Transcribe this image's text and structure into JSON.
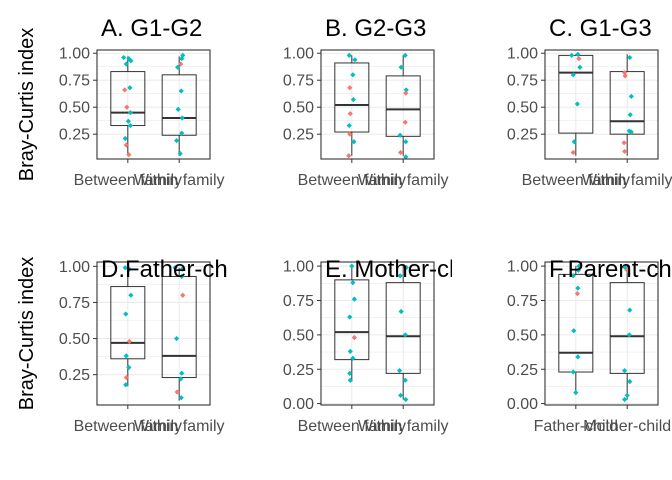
{
  "colors": {
    "group_a": "#F8766D",
    "group_b": "#00BFC4",
    "box_line": "#333333",
    "grid": "#ebebeb",
    "panel_border": "#333333"
  },
  "chart_data": [
    {
      "type": "boxplot",
      "title": "A. G1-G2",
      "ylabel": "Bray-Curtis index",
      "categories": [
        "Between family",
        "Within family"
      ],
      "yticks": [
        0.25,
        0.5,
        0.75,
        1.0
      ],
      "ytick_labels": [
        "0.25",
        "0.50",
        "0.75",
        "1.00"
      ],
      "ylim": [
        0.02,
        1.03
      ],
      "grid": true,
      "boxes": [
        {
          "q1": 0.33,
          "median": 0.45,
          "q3": 0.83,
          "whisker_low": 0.05,
          "whisker_high": 0.97
        },
        {
          "q1": 0.24,
          "median": 0.4,
          "q3": 0.8,
          "whisker_low": 0.05,
          "whisker_high": 0.97
        }
      ],
      "points": [
        {
          "c": 0,
          "dx": -0.08,
          "y": 0.96,
          "g": "b"
        },
        {
          "c": 0,
          "dx": 0.02,
          "y": 0.95,
          "g": "b"
        },
        {
          "c": 0,
          "dx": 0.06,
          "y": 0.93,
          "g": "b"
        },
        {
          "c": 0,
          "dx": -0.03,
          "y": 0.9,
          "g": "b"
        },
        {
          "c": 0,
          "dx": 0.04,
          "y": 0.68,
          "g": "b"
        },
        {
          "c": 0,
          "dx": -0.06,
          "y": 0.66,
          "g": "a"
        },
        {
          "c": 0,
          "dx": -0.02,
          "y": 0.5,
          "g": "a"
        },
        {
          "c": 0,
          "dx": 0.05,
          "y": 0.45,
          "g": "b"
        },
        {
          "c": 0,
          "dx": 0.01,
          "y": 0.37,
          "g": "b"
        },
        {
          "c": 0,
          "dx": 0.05,
          "y": 0.33,
          "g": "b"
        },
        {
          "c": 0,
          "dx": -0.05,
          "y": 0.21,
          "g": "b"
        },
        {
          "c": 0,
          "dx": -0.03,
          "y": 0.15,
          "g": "a"
        },
        {
          "c": 0,
          "dx": 0.02,
          "y": 0.06,
          "g": "a"
        },
        {
          "c": 1,
          "dx": 0.07,
          "y": 0.98,
          "g": "b"
        },
        {
          "c": 1,
          "dx": 0.05,
          "y": 0.95,
          "g": "b"
        },
        {
          "c": 1,
          "dx": 0.03,
          "y": 0.9,
          "g": "a"
        },
        {
          "c": 1,
          "dx": -0.03,
          "y": 0.87,
          "g": "b"
        },
        {
          "c": 1,
          "dx": 0.04,
          "y": 0.65,
          "g": "b"
        },
        {
          "c": 1,
          "dx": -0.02,
          "y": 0.48,
          "g": "b"
        },
        {
          "c": 1,
          "dx": 0.06,
          "y": 0.4,
          "g": "b"
        },
        {
          "c": 1,
          "dx": 0.05,
          "y": 0.26,
          "g": "b"
        },
        {
          "c": 1,
          "dx": -0.05,
          "y": 0.19,
          "g": "b"
        },
        {
          "c": 1,
          "dx": 0.02,
          "y": 0.07,
          "g": "b"
        }
      ]
    },
    {
      "type": "boxplot",
      "title": "B. G2-G3",
      "ylabel": "",
      "categories": [
        "Between family",
        "Within family"
      ],
      "yticks": [
        0.25,
        0.5,
        0.75,
        1.0
      ],
      "ytick_labels": [
        "0.25",
        "0.50",
        "0.75",
        "1.00"
      ],
      "ylim": [
        0.02,
        1.03
      ],
      "grid": true,
      "boxes": [
        {
          "q1": 0.27,
          "median": 0.52,
          "q3": 0.91,
          "whisker_low": 0.05,
          "whisker_high": 0.98
        },
        {
          "q1": 0.23,
          "median": 0.48,
          "q3": 0.79,
          "whisker_low": 0.05,
          "whisker_high": 0.98
        }
      ],
      "points": [
        {
          "c": 0,
          "dx": -0.05,
          "y": 0.98,
          "g": "b"
        },
        {
          "c": 0,
          "dx": 0.06,
          "y": 0.94,
          "g": "b"
        },
        {
          "c": 0,
          "dx": 0.02,
          "y": 0.8,
          "g": "b"
        },
        {
          "c": 0,
          "dx": -0.04,
          "y": 0.68,
          "g": "a"
        },
        {
          "c": 0,
          "dx": 0.03,
          "y": 0.57,
          "g": "b"
        },
        {
          "c": 0,
          "dx": -0.03,
          "y": 0.44,
          "g": "a"
        },
        {
          "c": 0,
          "dx": -0.05,
          "y": 0.33,
          "g": "b"
        },
        {
          "c": 0,
          "dx": -0.04,
          "y": 0.25,
          "g": "a"
        },
        {
          "c": 0,
          "dx": 0.04,
          "y": 0.18,
          "g": "b"
        },
        {
          "c": 0,
          "dx": -0.06,
          "y": 0.05,
          "g": "a"
        },
        {
          "c": 1,
          "dx": 0.04,
          "y": 0.98,
          "g": "b"
        },
        {
          "c": 1,
          "dx": -0.04,
          "y": 0.87,
          "g": "b"
        },
        {
          "c": 1,
          "dx": 0.06,
          "y": 0.66,
          "g": "b"
        },
        {
          "c": 1,
          "dx": 0.05,
          "y": 0.63,
          "g": "a"
        },
        {
          "c": 1,
          "dx": 0.04,
          "y": 0.36,
          "g": "a"
        },
        {
          "c": 1,
          "dx": -0.06,
          "y": 0.24,
          "g": "b"
        },
        {
          "c": 1,
          "dx": 0.05,
          "y": 0.18,
          "g": "b"
        },
        {
          "c": 1,
          "dx": 0.05,
          "y": 0.04,
          "g": "b"
        },
        {
          "c": 1,
          "dx": -0.05,
          "y": 0.08,
          "g": "a"
        }
      ]
    },
    {
      "type": "boxplot",
      "title": "C. G1-G3",
      "ylabel": "",
      "categories": [
        "Between family",
        "Within family"
      ],
      "yticks": [
        0.25,
        0.5,
        0.75,
        1.0
      ],
      "ytick_labels": [
        "0.25",
        "0.50",
        "0.75",
        "1.00"
      ],
      "ylim": [
        0.02,
        1.03
      ],
      "grid": true,
      "boxes": [
        {
          "q1": 0.26,
          "median": 0.82,
          "q3": 0.98,
          "whisker_low": 0.05,
          "whisker_high": 0.99
        },
        {
          "q1": 0.25,
          "median": 0.37,
          "q3": 0.83,
          "whisker_low": 0.05,
          "whisker_high": 0.99
        }
      ],
      "points": [
        {
          "c": 0,
          "dx": -0.08,
          "y": 0.98,
          "g": "b"
        },
        {
          "c": 0,
          "dx": 0.04,
          "y": 0.99,
          "g": "b"
        },
        {
          "c": 0,
          "dx": 0.06,
          "y": 0.95,
          "g": "a"
        },
        {
          "c": 0,
          "dx": 0.08,
          "y": 0.87,
          "g": "b"
        },
        {
          "c": 0,
          "dx": -0.05,
          "y": 0.8,
          "g": "b"
        },
        {
          "c": 0,
          "dx": 0.03,
          "y": 0.53,
          "g": "b"
        },
        {
          "c": 0,
          "dx": -0.03,
          "y": 0.18,
          "g": "b"
        },
        {
          "c": 0,
          "dx": -0.05,
          "y": 0.08,
          "g": "a"
        },
        {
          "c": 1,
          "dx": 0.05,
          "y": 0.96,
          "g": "b"
        },
        {
          "c": 1,
          "dx": -0.05,
          "y": 0.82,
          "g": "a"
        },
        {
          "c": 1,
          "dx": -0.04,
          "y": 0.79,
          "g": "a"
        },
        {
          "c": 1,
          "dx": 0.08,
          "y": 0.6,
          "g": "b"
        },
        {
          "c": 1,
          "dx": 0.06,
          "y": 0.43,
          "g": "b"
        },
        {
          "c": 1,
          "dx": 0.04,
          "y": 0.28,
          "g": "b"
        },
        {
          "c": 1,
          "dx": 0.08,
          "y": 0.27,
          "g": "b"
        },
        {
          "c": 1,
          "dx": -0.06,
          "y": 0.17,
          "g": "a"
        },
        {
          "c": 1,
          "dx": -0.05,
          "y": 0.09,
          "g": "a"
        }
      ]
    },
    {
      "type": "boxplot",
      "title": "D.Father-child",
      "ylabel": "Bray-Curtis index",
      "categories": [
        "Between family",
        "Within family"
      ],
      "yticks": [
        0.25,
        0.5,
        0.75,
        1.0
      ],
      "ytick_labels": [
        "0.25",
        "0.50",
        "0.75",
        "1.00"
      ],
      "ylim": [
        0.04,
        1.03
      ],
      "grid": true,
      "boxes": [
        {
          "q1": 0.36,
          "median": 0.47,
          "q3": 0.86,
          "whisker_low": 0.17,
          "whisker_high": 0.99
        },
        {
          "q1": 0.23,
          "median": 0.38,
          "q3": 0.93,
          "whisker_low": 0.07,
          "whisker_high": 0.99
        }
      ],
      "points": [
        {
          "c": 0,
          "dx": -0.05,
          "y": 0.99,
          "g": "b"
        },
        {
          "c": 0,
          "dx": 0.03,
          "y": 0.98,
          "g": "b"
        },
        {
          "c": 0,
          "dx": 0.06,
          "y": 0.8,
          "g": "b"
        },
        {
          "c": 0,
          "dx": -0.04,
          "y": 0.67,
          "g": "b"
        },
        {
          "c": 0,
          "dx": 0.03,
          "y": 0.48,
          "g": "a"
        },
        {
          "c": 0,
          "dx": -0.03,
          "y": 0.38,
          "g": "b"
        },
        {
          "c": 0,
          "dx": 0.02,
          "y": 0.3,
          "g": "b"
        },
        {
          "c": 0,
          "dx": -0.03,
          "y": 0.23,
          "g": "a"
        },
        {
          "c": 0,
          "dx": -0.04,
          "y": 0.18,
          "g": "b"
        },
        {
          "c": 1,
          "dx": -0.08,
          "y": 0.99,
          "g": "b"
        },
        {
          "c": 1,
          "dx": 0.06,
          "y": 0.98,
          "g": "b"
        },
        {
          "c": 1,
          "dx": 0.05,
          "y": 0.93,
          "g": "b"
        },
        {
          "c": 1,
          "dx": 0.07,
          "y": 0.8,
          "g": "a"
        },
        {
          "c": 1,
          "dx": -0.05,
          "y": 0.5,
          "g": "b"
        },
        {
          "c": 1,
          "dx": 0.05,
          "y": 0.26,
          "g": "b"
        },
        {
          "c": 1,
          "dx": 0.03,
          "y": 0.22,
          "g": "b"
        },
        {
          "c": 1,
          "dx": -0.04,
          "y": 0.13,
          "g": "a"
        },
        {
          "c": 1,
          "dx": 0.04,
          "y": 0.09,
          "g": "b"
        }
      ]
    },
    {
      "type": "boxplot",
      "title": "E. Mother-child",
      "ylabel": "",
      "categories": [
        "Between family",
        "Within family"
      ],
      "yticks": [
        0.0,
        0.25,
        0.5,
        0.75,
        1.0
      ],
      "ytick_labels": [
        "0.00",
        "0.25",
        "0.50",
        "0.75",
        "1.00"
      ],
      "ylim": [
        -0.01,
        1.03
      ],
      "grid": true,
      "boxes": [
        {
          "q1": 0.32,
          "median": 0.52,
          "q3": 0.9,
          "whisker_low": 0.16,
          "whisker_high": 1.0
        },
        {
          "q1": 0.22,
          "median": 0.49,
          "q3": 0.88,
          "whisker_low": 0.03,
          "whisker_high": 1.0
        }
      ],
      "points": [
        {
          "c": 0,
          "dx": 0.0,
          "y": 1.0,
          "g": "b"
        },
        {
          "c": 0,
          "dx": 0.02,
          "y": 0.88,
          "g": "b"
        },
        {
          "c": 0,
          "dx": 0.05,
          "y": 0.76,
          "g": "b"
        },
        {
          "c": 0,
          "dx": -0.04,
          "y": 0.63,
          "g": "b"
        },
        {
          "c": 0,
          "dx": 0.05,
          "y": 0.48,
          "g": "a"
        },
        {
          "c": 0,
          "dx": -0.03,
          "y": 0.38,
          "g": "b"
        },
        {
          "c": 0,
          "dx": 0.02,
          "y": 0.33,
          "g": "b"
        },
        {
          "c": 0,
          "dx": -0.04,
          "y": 0.22,
          "g": "b"
        },
        {
          "c": 0,
          "dx": -0.03,
          "y": 0.17,
          "g": "b"
        },
        {
          "c": 1,
          "dx": 0.06,
          "y": 0.99,
          "g": "b"
        },
        {
          "c": 1,
          "dx": -0.06,
          "y": 0.93,
          "g": "b"
        },
        {
          "c": 1,
          "dx": -0.04,
          "y": 0.67,
          "g": "b"
        },
        {
          "c": 1,
          "dx": 0.04,
          "y": 0.5,
          "g": "b"
        },
        {
          "c": 1,
          "dx": -0.07,
          "y": 0.24,
          "g": "b"
        },
        {
          "c": 1,
          "dx": 0.04,
          "y": 0.17,
          "g": "b"
        },
        {
          "c": 1,
          "dx": -0.05,
          "y": 0.06,
          "g": "b"
        },
        {
          "c": 1,
          "dx": 0.05,
          "y": 0.03,
          "g": "b"
        }
      ]
    },
    {
      "type": "boxplot",
      "title": "F.Parent-child",
      "ylabel": "",
      "categories": [
        "Father-child",
        "Mother-child"
      ],
      "yticks": [
        0.0,
        0.25,
        0.5,
        0.75,
        1.0
      ],
      "ytick_labels": [
        "0.00",
        "0.25",
        "0.50",
        "0.75",
        "1.00"
      ],
      "ylim": [
        -0.01,
        1.03
      ],
      "grid": true,
      "boxes": [
        {
          "q1": 0.23,
          "median": 0.37,
          "q3": 0.94,
          "whisker_low": 0.07,
          "whisker_high": 1.0
        },
        {
          "q1": 0.22,
          "median": 0.49,
          "q3": 0.88,
          "whisker_low": 0.03,
          "whisker_high": 1.0
        }
      ],
      "points": [
        {
          "c": 0,
          "dx": 0.06,
          "y": 1.0,
          "g": "b"
        },
        {
          "c": 0,
          "dx": 0.05,
          "y": 0.97,
          "g": "b"
        },
        {
          "c": 0,
          "dx": -0.05,
          "y": 0.93,
          "g": "b"
        },
        {
          "c": 0,
          "dx": 0.04,
          "y": 0.84,
          "g": "b"
        },
        {
          "c": 0,
          "dx": 0.03,
          "y": 0.8,
          "g": "a"
        },
        {
          "c": 0,
          "dx": -0.04,
          "y": 0.53,
          "g": "b"
        },
        {
          "c": 0,
          "dx": 0.04,
          "y": 0.34,
          "g": "b"
        },
        {
          "c": 0,
          "dx": -0.05,
          "y": 0.23,
          "g": "b"
        },
        {
          "c": 0,
          "dx": 0.0,
          "y": 0.08,
          "g": "b"
        },
        {
          "c": 1,
          "dx": -0.04,
          "y": 0.99,
          "g": "b"
        },
        {
          "c": 1,
          "dx": 0.0,
          "y": 0.97,
          "g": "a"
        },
        {
          "c": 1,
          "dx": 0.05,
          "y": 0.68,
          "g": "b"
        },
        {
          "c": 1,
          "dx": 0.04,
          "y": 0.5,
          "g": "b"
        },
        {
          "c": 1,
          "dx": -0.05,
          "y": 0.24,
          "g": "b"
        },
        {
          "c": 1,
          "dx": 0.05,
          "y": 0.16,
          "g": "b"
        },
        {
          "c": 1,
          "dx": 0.0,
          "y": 0.06,
          "g": "b"
        },
        {
          "c": 1,
          "dx": -0.05,
          "y": 0.03,
          "g": "b"
        }
      ]
    }
  ]
}
